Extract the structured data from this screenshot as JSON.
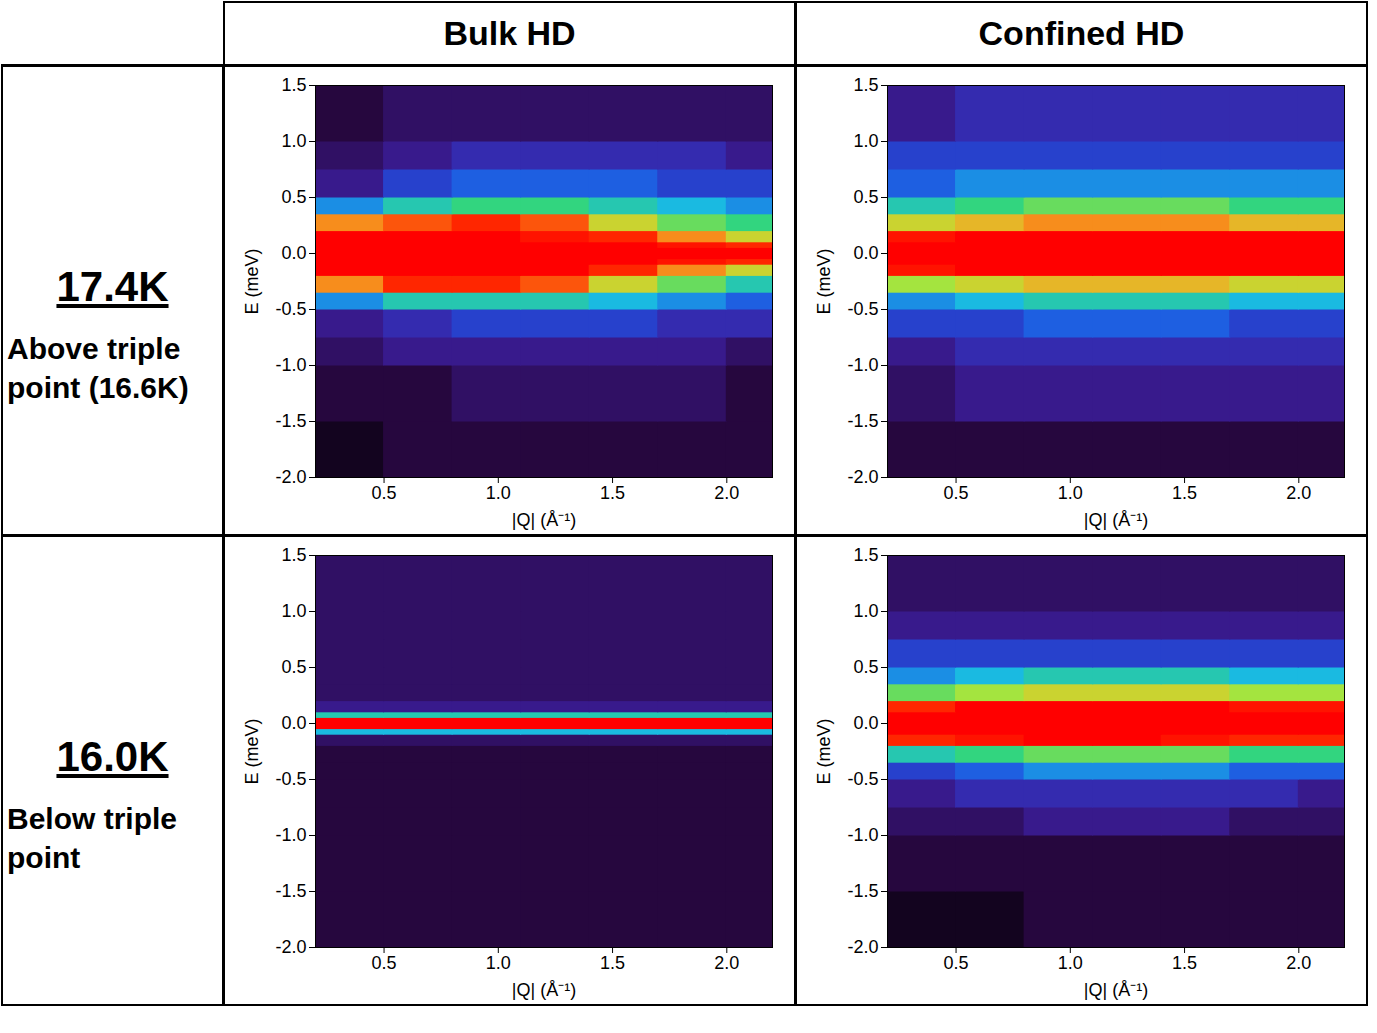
{
  "column_heads": [
    "Bulk HD",
    "Confined HD"
  ],
  "row_heads": [
    {
      "temperature": "17.4K",
      "description": "Above triple point (16.6K)"
    },
    {
      "temperature": "16.0K",
      "description": "Below triple point"
    }
  ],
  "chart_data": [
    {
      "type": "heatmap",
      "x_label": "|Q| (Å⁻¹)",
      "y_label": "E (meV)",
      "xlim": [
        0.2,
        2.2
      ],
      "ylim": [
        -2.0,
        1.5
      ],
      "xticks": [
        {
          "value": 0.5,
          "label": "0.5"
        },
        {
          "value": 1,
          "label": "1.0"
        },
        {
          "value": 1.5,
          "label": "1.5"
        },
        {
          "value": 2,
          "label": "2.0"
        }
      ],
      "yticks": [
        {
          "value": -2,
          "label": "-2.0"
        },
        {
          "value": -1.5,
          "label": "-1.5"
        },
        {
          "value": -1,
          "label": "-1.0"
        },
        {
          "value": -0.5,
          "label": "-0.5"
        },
        {
          "value": 0,
          "label": "0.0"
        },
        {
          "value": 0.5,
          "label": "0.5"
        },
        {
          "value": 1,
          "label": "1.0"
        },
        {
          "value": 1.5,
          "label": "1.5"
        }
      ],
      "x_bins": [
        0.2,
        0.5,
        0.8,
        1.1,
        1.4,
        1.7,
        2.0,
        2.2
      ],
      "y_bins": [
        -2.0,
        -1.5,
        -1.0,
        -0.75,
        -0.5,
        -0.35,
        -0.2,
        -0.1,
        -0.05,
        0.05,
        0.1,
        0.2,
        0.35,
        0.5,
        0.75,
        1.0,
        1.5
      ],
      "clim": [
        0,
        10
      ],
      "cells": [
        [
          0.5,
          1,
          1,
          1,
          1,
          1,
          1
        ],
        [
          1,
          1,
          1.5,
          1.5,
          1.5,
          1.5,
          1
        ],
        [
          1.5,
          2,
          2,
          2,
          2,
          2,
          1.5
        ],
        [
          2,
          2.5,
          3,
          3,
          3,
          2.5,
          2.5
        ],
        [
          4,
          5,
          5,
          5,
          4.5,
          4,
          3.5
        ],
        [
          8,
          9,
          9,
          8.5,
          7,
          6,
          5
        ],
        [
          10,
          10,
          10,
          10,
          9,
          8,
          7
        ],
        [
          10,
          10,
          10,
          10,
          10,
          9.5,
          9
        ],
        [
          10,
          10,
          10,
          10,
          10,
          10,
          10
        ],
        [
          10,
          10,
          10,
          10,
          10,
          9.5,
          9
        ],
        [
          10,
          10,
          10,
          9.5,
          9,
          8,
          7
        ],
        [
          8,
          8.5,
          9,
          8.5,
          7,
          6,
          5.5
        ],
        [
          4,
          5,
          5.5,
          5.5,
          5,
          4.5,
          4
        ],
        [
          2,
          3,
          3.5,
          3.5,
          3.5,
          3,
          3
        ],
        [
          1.5,
          2,
          2.5,
          2.5,
          2.5,
          2.5,
          2
        ],
        [
          1,
          1.5,
          1.5,
          1.5,
          1.5,
          1.5,
          1.5
        ]
      ]
    },
    {
      "type": "heatmap",
      "x_label": "|Q| (Å⁻¹)",
      "y_label": "E (meV)",
      "xlim": [
        0.2,
        2.2
      ],
      "ylim": [
        -2.0,
        1.5
      ],
      "xticks": [
        {
          "value": 0.5,
          "label": "0.5"
        },
        {
          "value": 1,
          "label": "1.0"
        },
        {
          "value": 1.5,
          "label": "1.5"
        },
        {
          "value": 2,
          "label": "2.0"
        }
      ],
      "yticks": [
        {
          "value": -2,
          "label": "-2.0"
        },
        {
          "value": -1.5,
          "label": "-1.5"
        },
        {
          "value": -1,
          "label": "-1.0"
        },
        {
          "value": -0.5,
          "label": "-0.5"
        },
        {
          "value": 0,
          "label": "0.0"
        },
        {
          "value": 0.5,
          "label": "0.5"
        },
        {
          "value": 1,
          "label": "1.0"
        },
        {
          "value": 1.5,
          "label": "1.5"
        }
      ],
      "x_bins": [
        0.2,
        0.5,
        0.8,
        1.1,
        1.4,
        1.7,
        2.0,
        2.2
      ],
      "y_bins": [
        -2.0,
        -1.5,
        -1.0,
        -0.75,
        -0.5,
        -0.35,
        -0.2,
        -0.1,
        -0.05,
        0.05,
        0.1,
        0.2,
        0.35,
        0.5,
        0.75,
        1.0,
        1.5
      ],
      "clim": [
        0,
        10
      ],
      "cells": [
        [
          1,
          1,
          1,
          1,
          1,
          1,
          1
        ],
        [
          1.5,
          2,
          2,
          2,
          2,
          2,
          2
        ],
        [
          2,
          2.5,
          2.5,
          2.5,
          2.5,
          2.5,
          2.5
        ],
        [
          3,
          3,
          3.5,
          3.5,
          3.5,
          3,
          3
        ],
        [
          4,
          4.5,
          5,
          5,
          5,
          4.5,
          4.5
        ],
        [
          6.5,
          7,
          7.5,
          7.5,
          7.5,
          7,
          7
        ],
        [
          9.5,
          10,
          10,
          10,
          10,
          10,
          10
        ],
        [
          10,
          10,
          10,
          10,
          10,
          10,
          10
        ],
        [
          10,
          10,
          10,
          10,
          10,
          10,
          10
        ],
        [
          10,
          10,
          10,
          10,
          10,
          10,
          10
        ],
        [
          9.5,
          10,
          10,
          10,
          10,
          10,
          10
        ],
        [
          7,
          7.5,
          8,
          8,
          8,
          7.5,
          7.5
        ],
        [
          5,
          5.5,
          6,
          6,
          6,
          5.5,
          5.5
        ],
        [
          3.5,
          4,
          4,
          4,
          4,
          4,
          4
        ],
        [
          3,
          3,
          3,
          3,
          3,
          3,
          3
        ],
        [
          2,
          2.5,
          2.5,
          2.5,
          2.5,
          2.5,
          2.5
        ]
      ]
    },
    {
      "type": "heatmap",
      "x_label": "|Q| (Å⁻¹)",
      "y_label": "E (meV)",
      "xlim": [
        0.2,
        2.2
      ],
      "ylim": [
        -2.0,
        1.5
      ],
      "xticks": [
        {
          "value": 0.5,
          "label": "0.5"
        },
        {
          "value": 1,
          "label": "1.0"
        },
        {
          "value": 1.5,
          "label": "1.5"
        },
        {
          "value": 2,
          "label": "2.0"
        }
      ],
      "yticks": [
        {
          "value": -2,
          "label": "-2.0"
        },
        {
          "value": -1.5,
          "label": "-1.5"
        },
        {
          "value": -1,
          "label": "-1.0"
        },
        {
          "value": -0.5,
          "label": "-0.5"
        },
        {
          "value": 0,
          "label": "0.0"
        },
        {
          "value": 0.5,
          "label": "0.5"
        },
        {
          "value": 1,
          "label": "1.0"
        },
        {
          "value": 1.5,
          "label": "1.5"
        }
      ],
      "x_bins": [
        0.2,
        0.5,
        0.8,
        1.1,
        1.4,
        1.7,
        2.0,
        2.2
      ],
      "y_bins": [
        -2.0,
        -1.5,
        -1.0,
        -0.75,
        -0.5,
        -0.35,
        -0.2,
        -0.1,
        -0.05,
        0.05,
        0.1,
        0.2,
        0.35,
        0.5,
        0.75,
        1.0,
        1.5
      ],
      "clim": [
        0,
        10
      ],
      "cells": [
        [
          1,
          1,
          1,
          1,
          1,
          1,
          1
        ],
        [
          1,
          1,
          1,
          1,
          1,
          1,
          1
        ],
        [
          1,
          1,
          1,
          1,
          1,
          1,
          1
        ],
        [
          1,
          1,
          1,
          1,
          1,
          1,
          1
        ],
        [
          1,
          1,
          1,
          1,
          1,
          1,
          1
        ],
        [
          1,
          1,
          1,
          1,
          1,
          1,
          1
        ],
        [
          1.5,
          1.5,
          1.5,
          1.5,
          1.5,
          1.5,
          1.5
        ],
        [
          4.5,
          4.5,
          4.5,
          4.5,
          4.5,
          4.5,
          4.5
        ],
        [
          10,
          10,
          10,
          10,
          10,
          10,
          10
        ],
        [
          5,
          5,
          5,
          5,
          5,
          5,
          5
        ],
        [
          2,
          2,
          2,
          2,
          2,
          2,
          2
        ],
        [
          1.5,
          1.5,
          1.5,
          1.5,
          1.5,
          1.5,
          1.5
        ],
        [
          1.5,
          1.5,
          1.5,
          1.5,
          1.5,
          1.5,
          1.5
        ],
        [
          1.5,
          1.5,
          1.5,
          1.5,
          1.5,
          1.5,
          1.5
        ],
        [
          1.5,
          1.5,
          1.5,
          1.5,
          1.5,
          1.5,
          1.5
        ],
        [
          1.5,
          1.5,
          1.5,
          1.5,
          1.5,
          1.5,
          1.5
        ]
      ]
    },
    {
      "type": "heatmap",
      "x_label": "|Q| (Å⁻¹)",
      "y_label": "E (meV)",
      "xlim": [
        0.2,
        2.2
      ],
      "ylim": [
        -2.0,
        1.5
      ],
      "xticks": [
        {
          "value": 0.5,
          "label": "0.5"
        },
        {
          "value": 1,
          "label": "1.0"
        },
        {
          "value": 1.5,
          "label": "1.5"
        },
        {
          "value": 2,
          "label": "2.0"
        }
      ],
      "yticks": [
        {
          "value": -2,
          "label": "-2.0"
        },
        {
          "value": -1.5,
          "label": "-1.5"
        },
        {
          "value": -1,
          "label": "-1.0"
        },
        {
          "value": -0.5,
          "label": "-0.5"
        },
        {
          "value": 0,
          "label": "0.0"
        },
        {
          "value": 0.5,
          "label": "0.5"
        },
        {
          "value": 1,
          "label": "1.0"
        },
        {
          "value": 1.5,
          "label": "1.5"
        }
      ],
      "x_bins": [
        0.2,
        0.5,
        0.8,
        1.1,
        1.4,
        1.7,
        2.0,
        2.2
      ],
      "y_bins": [
        -2.0,
        -1.5,
        -1.0,
        -0.75,
        -0.5,
        -0.35,
        -0.2,
        -0.1,
        -0.05,
        0.05,
        0.1,
        0.2,
        0.35,
        0.5,
        0.75,
        1.0,
        1.5
      ],
      "clim": [
        0,
        10
      ],
      "cells": [
        [
          0.5,
          0.5,
          1,
          1,
          1,
          1,
          1
        ],
        [
          1,
          1,
          1,
          1,
          1,
          1,
          1
        ],
        [
          1.5,
          1.5,
          2,
          2,
          2,
          1.5,
          1.5
        ],
        [
          2,
          2.5,
          2.5,
          2.5,
          2.5,
          2.5,
          2
        ],
        [
          3,
          3.5,
          4,
          4,
          4,
          3.5,
          3.5
        ],
        [
          5,
          5.5,
          6,
          6,
          6,
          5.5,
          5.5
        ],
        [
          9,
          9.5,
          10,
          10,
          9.5,
          9,
          9
        ],
        [
          10,
          10,
          10,
          10,
          10,
          10,
          10
        ],
        [
          10,
          10,
          10,
          10,
          10,
          10,
          10
        ],
        [
          10,
          10,
          10,
          10,
          10,
          10,
          10
        ],
        [
          9,
          10,
          10,
          10,
          10,
          9.5,
          9.5
        ],
        [
          6,
          6.5,
          7,
          7,
          7,
          6.5,
          6.5
        ],
        [
          4,
          4.5,
          5,
          5,
          5,
          4.5,
          4.5
        ],
        [
          3,
          3,
          3,
          3,
          3,
          3,
          3
        ],
        [
          2,
          2,
          2,
          2,
          2,
          2,
          2
        ],
        [
          1.5,
          1.5,
          1.5,
          1.5,
          1.5,
          1.5,
          1.5
        ]
      ]
    }
  ]
}
